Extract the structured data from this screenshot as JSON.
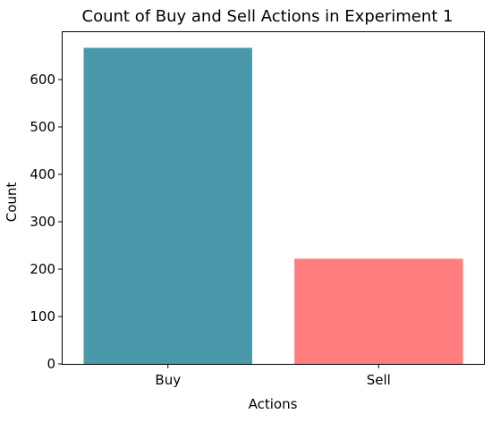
{
  "chart_data": {
    "type": "bar",
    "title": "Count of Buy and Sell Actions in Experiment 1",
    "xlabel": "Actions",
    "ylabel": "Count",
    "categories": [
      "Buy",
      "Sell"
    ],
    "values": [
      667,
      222
    ],
    "colors": [
      "#4a99ab",
      "#ff7f7f"
    ],
    "ylim": [
      0,
      700
    ],
    "yticks": [
      0,
      100,
      200,
      300,
      400,
      500,
      600
    ],
    "grid": false,
    "legend": "none"
  }
}
